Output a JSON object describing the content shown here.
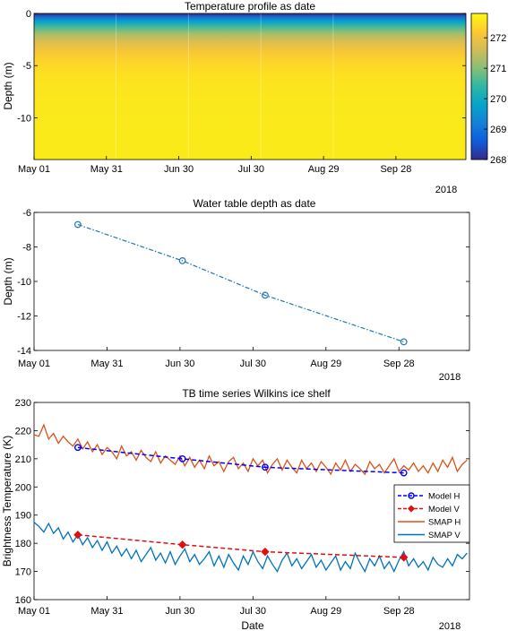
{
  "chart_data": [
    {
      "type": "heatmap",
      "title": "Temperature profile as date",
      "ylabel": "Depth (m)",
      "xlabel": "",
      "x_tick_labels": [
        "May 01",
        "May 31",
        "Jun 30",
        "Jul 30",
        "Aug 29",
        "Sep 28"
      ],
      "x_range": [
        "May 01",
        "Oct 27"
      ],
      "year_label": "2018",
      "y_ticks": [
        0,
        -5,
        -10
      ],
      "y_range": [
        -14,
        0
      ],
      "columns_start": [
        "May 01",
        "Jun 04",
        "Jul 04",
        "Aug 03",
        "Sep 02"
      ],
      "surface_temperature": 268,
      "deep_temperature": 272.6,
      "colorbar": {
        "ticks": [
          268,
          269,
          270,
          271,
          272
        ],
        "range": [
          268,
          272.8
        ],
        "colormap": "parula",
        "colors": [
          "#352a87",
          "#0f5cdd",
          "#1481d6",
          "#06a4ca",
          "#2eb7a4",
          "#87bf77",
          "#d1bb59",
          "#fec832",
          "#f9fb0e"
        ]
      }
    },
    {
      "type": "line",
      "title": "Water table depth as date",
      "ylabel": "Depth (m)",
      "xlabel": "",
      "x_tick_labels": [
        "May 01",
        "May 31",
        "Jun 30",
        "Jul 30",
        "Aug 29",
        "Sep 28"
      ],
      "x_range": [
        "May 01",
        "Oct 27"
      ],
      "year_label": "2018",
      "ylim": [
        -14,
        -6
      ],
      "y_ticks": [
        -6,
        -8,
        -10,
        -12,
        -14
      ],
      "color": "#1f77b4",
      "series": [
        {
          "x": [
            "May 19",
            "Jul 01",
            "Aug 04",
            "Sep 30"
          ],
          "y": [
            -6.7,
            -8.8,
            -10.8,
            -13.5
          ]
        }
      ]
    },
    {
      "type": "line",
      "title": "TB time series Wilkins ice shelf",
      "ylabel": "Brightness Temperature (K)",
      "xlabel": "Date",
      "x_tick_labels": [
        "May 01",
        "May 31",
        "Jun 30",
        "Jul 30",
        "Aug 29",
        "Sep 28"
      ],
      "x_range": [
        "May 01",
        "Oct 27"
      ],
      "year_label": "2018",
      "ylim": [
        160,
        230
      ],
      "y_ticks": [
        160,
        170,
        180,
        190,
        200,
        210,
        220,
        230
      ],
      "legend_position": "right",
      "series": [
        {
          "name": "Model H",
          "color": "#0000ff",
          "style": "dashed-circle",
          "x": [
            "May 19",
            "Jul 01",
            "Aug 04",
            "Sep 30"
          ],
          "y": [
            214,
            210,
            207,
            205
          ]
        },
        {
          "name": "Model V",
          "color": "#e01010",
          "style": "dashed-diamond",
          "x": [
            "May 19",
            "Jul 01",
            "Aug 04",
            "Sep 30"
          ],
          "y": [
            183,
            179.5,
            177,
            175
          ]
        },
        {
          "name": "SMAP H",
          "color": "#d95319",
          "style": "solid",
          "x_start": "May 01",
          "x_step_days": 2,
          "y": [
            218.5,
            218,
            222,
            217,
            219,
            215.5,
            218,
            216,
            214.5,
            217,
            213.5,
            216,
            212.5,
            215,
            211.5,
            214,
            212.5,
            210,
            214.5,
            211,
            212.5,
            209.5,
            213,
            210.5,
            209,
            212.5,
            208.5,
            211,
            209.5,
            208,
            211,
            207.5,
            210.5,
            207,
            209.5,
            206.5,
            211,
            207.5,
            209,
            205.5,
            209,
            210.5,
            206.5,
            208.5,
            205.5,
            210,
            207.5,
            209.5,
            205,
            208,
            210,
            206,
            209.5,
            207,
            205,
            209.5,
            206.5,
            208.5,
            205.5,
            209,
            207,
            204.5,
            208.5,
            206,
            209.5,
            205.5,
            208,
            206.5,
            204.5,
            209,
            206.5,
            208,
            205,
            207.5,
            210,
            205.5,
            207.5,
            206,
            208.5,
            205.5,
            207.5,
            205,
            208.5,
            205.5,
            209.5,
            207,
            210.5,
            205.5,
            208,
            209.5
          ]
        },
        {
          "name": "SMAP V",
          "color": "#0072bd",
          "style": "solid",
          "x_start": "May 01",
          "x_step_days": 2,
          "y": [
            187.5,
            186,
            184,
            187,
            183.5,
            185.5,
            181.5,
            184,
            180.5,
            183,
            179.5,
            182,
            178.5,
            181,
            177.5,
            180.5,
            176.5,
            179,
            175.5,
            178,
            174.5,
            177.5,
            173.5,
            176,
            178.5,
            174,
            176.5,
            173,
            177,
            172.5,
            175.5,
            178,
            173.5,
            176,
            172.5,
            174.5,
            177,
            172,
            175.5,
            171.5,
            176,
            173,
            170.5,
            175.5,
            172.5,
            177,
            173.5,
            171,
            175.5,
            172.5,
            170,
            174,
            176.5,
            172,
            174.5,
            171,
            173.5,
            176,
            171.5,
            174,
            170.5,
            173,
            175.5,
            170.5,
            173.5,
            171,
            176.5,
            173,
            170,
            174.5,
            172,
            175.5,
            171,
            173.5,
            170,
            174,
            177,
            172,
            174.5,
            171.5,
            173.5,
            170.5,
            175,
            172.5,
            171.5,
            174.5,
            172,
            176,
            174.5,
            176.5
          ]
        }
      ]
    }
  ]
}
